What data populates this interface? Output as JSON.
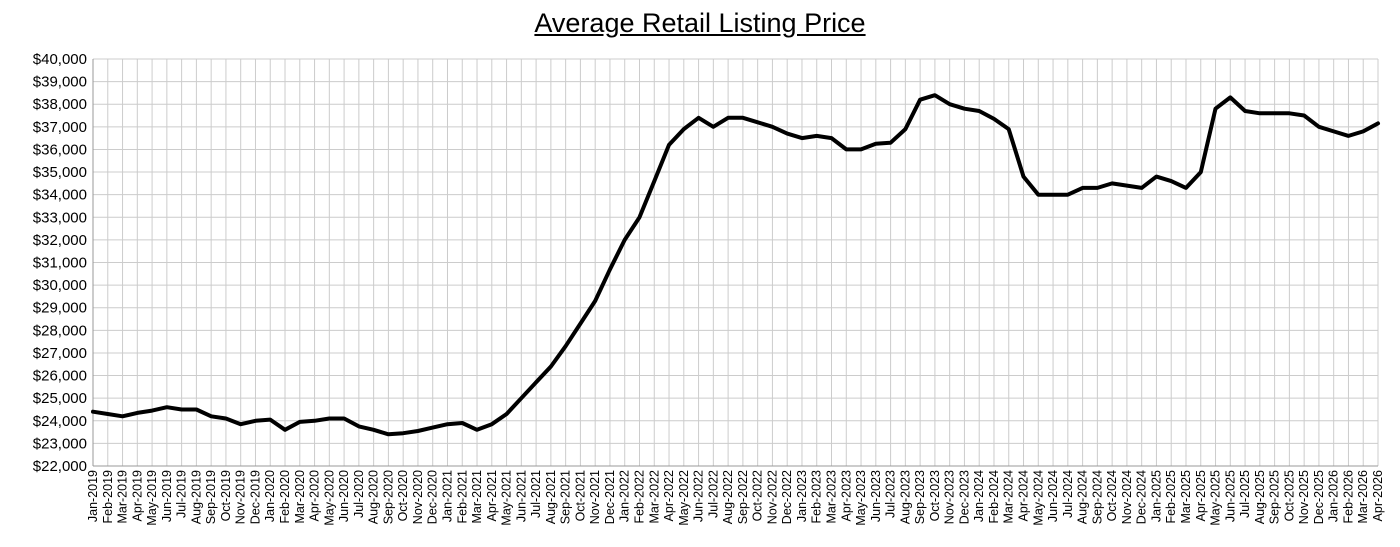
{
  "chart_data": {
    "type": "line",
    "title": "Average Retail Listing Price",
    "xlabel": "",
    "ylabel": "",
    "ylim": [
      22000,
      40000
    ],
    "grid": true,
    "line_color": "#000000",
    "grid_color": "#cccccc",
    "y_tick_labels": [
      "$22,000",
      "$23,000",
      "$24,000",
      "$25,000",
      "$26,000",
      "$27,000",
      "$28,000",
      "$29,000",
      "$30,000",
      "$31,000",
      "$32,000",
      "$33,000",
      "$34,000",
      "$35,000",
      "$36,000",
      "$37,000",
      "$38,000",
      "$39,000",
      "$40,000"
    ],
    "x_tick_labels": [
      "Jan-2019",
      "Feb-2019",
      "Mar-2019",
      "Apr-2019",
      "May-2019",
      "Jun-2019",
      "Jul-2019",
      "Aug-2019",
      "Sep-2019",
      "Oct-2019",
      "Nov-2019",
      "Dec-2019",
      "Jan-2020",
      "Feb-2020",
      "Mar-2020",
      "Apr-2020",
      "May-2020",
      "Jun-2020",
      "Jul-2020",
      "Aug-2020",
      "Sep-2020",
      "Oct-2020",
      "Nov-2020",
      "Dec-2020",
      "Jan-2021",
      "Feb-2021",
      "Mar-2021",
      "Apr-2021",
      "May-2021",
      "Jun-2021",
      "Jul-2021",
      "Aug-2021",
      "Sep-2021",
      "Oct-2021",
      "Nov-2021",
      "Dec-2021",
      "Jan-2022",
      "Feb-2022",
      "Mar-2022",
      "Apr-2022",
      "May-2022",
      "Jun-2022",
      "Jul-2022",
      "Aug-2022",
      "Sep-2022",
      "Oct-2022",
      "Nov-2022",
      "Dec-2022",
      "Jan-2023",
      "Feb-2023",
      "Mar-2023",
      "Apr-2023",
      "May-2023",
      "Jun-2023",
      "Jul-2023",
      "Aug-2023",
      "Sep-2023",
      "Oct-2023",
      "Nov-2023",
      "Dec-2023",
      "Jan-2024",
      "Feb-2024",
      "Mar-2024",
      "Apr-2024",
      "May-2024",
      "Jun-2024",
      "Jul-2024",
      "Aug-2024",
      "Sep-2024",
      "Oct-2024",
      "Nov-2024",
      "Dec-2024",
      "Jan-2025",
      "Feb-2025",
      "Mar-2025",
      "Apr-2025",
      "May-2025",
      "Jun-2025",
      "Jul-2025",
      "Aug-2025",
      "Sep-2025",
      "Oct-2025",
      "Nov-2025",
      "Dec-2025",
      "Jan-2026",
      "Feb-2026",
      "Mar-2026",
      "Apr-2026"
    ],
    "series": [
      {
        "values": [
          24400,
          24300,
          24200,
          24350,
          24450,
          24600,
          24500,
          24500,
          24200,
          24100,
          23850,
          24000,
          24050,
          23600,
          23950,
          24000,
          24100,
          24100,
          23750,
          23600,
          23400,
          23450,
          23550,
          23700,
          23850,
          23900,
          23600,
          23850,
          24300,
          25000,
          25700,
          26400,
          27300,
          28300,
          29300,
          30700,
          32000,
          33000,
          34600,
          36200,
          36900,
          37400,
          37000,
          37400,
          37400,
          37200,
          37000,
          36700,
          36500,
          36600,
          36500,
          36000,
          36000,
          36250,
          36300,
          36900,
          38200,
          38400,
          38000,
          37800,
          37700,
          37350,
          36900,
          34800,
          34000,
          34000,
          34000,
          34300,
          34300,
          34500,
          34400,
          34300,
          34800,
          34600,
          34300,
          35000,
          37800,
          38300,
          37700,
          37600,
          37600,
          37600,
          37500,
          37000,
          36800,
          36600,
          36800,
          37150
        ]
      }
    ]
  }
}
